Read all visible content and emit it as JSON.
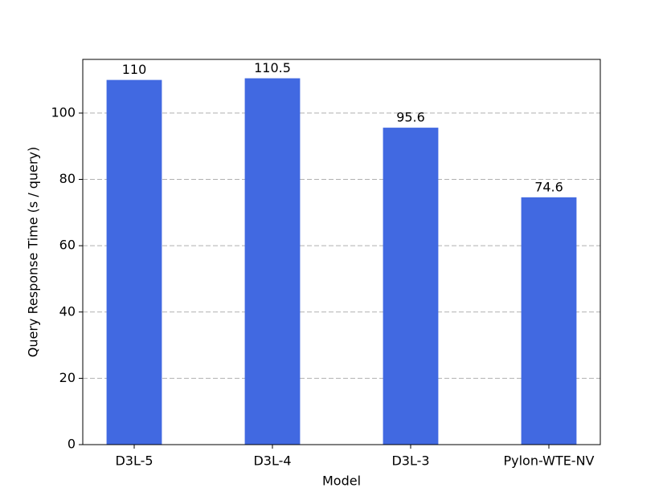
{
  "chart_data": {
    "type": "bar",
    "x_label": "Model",
    "y_label": "Query Response Time (s / query)",
    "categories": [
      "D3L-5",
      "D3L-4",
      "D3L-3",
      "Pylon-WTE-NV"
    ],
    "values": [
      110,
      110.5,
      95.6,
      74.6
    ],
    "color": "#4169e1",
    "ylim": [
      0,
      116.2
    ],
    "yticks": [
      0,
      20,
      40,
      60,
      80,
      100
    ],
    "grid": true,
    "data_labels": true
  }
}
